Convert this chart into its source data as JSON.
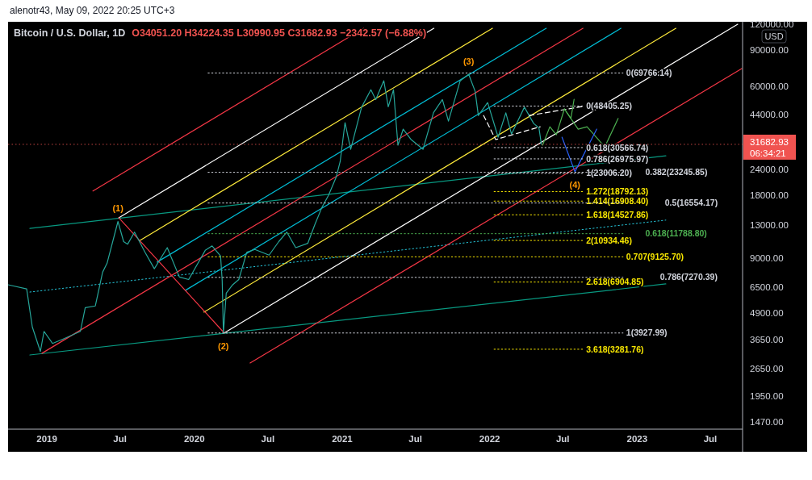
{
  "chart_data": {
    "type": "line",
    "title": "Bitcoin / U.S. Dollar, 1D",
    "subtitle": "O34051.20 H34224.35 L30990.95 C31682.93 −2342.57 (−6.88%)",
    "ylabel": "USD",
    "log": true,
    "xlim": [
      "2018-09-27",
      "2023-09-19"
    ],
    "ylim": [
      1355,
      123000
    ],
    "xticks": [
      {
        "value": "2019-01-01",
        "label": "2019"
      },
      {
        "value": "2019-07-01",
        "label": "Jul"
      },
      {
        "value": "2020-01-01",
        "label": "2020"
      },
      {
        "value": "2020-07-01",
        "label": "Jul"
      },
      {
        "value": "2021-01-01",
        "label": "2021"
      },
      {
        "value": "2021-07-01",
        "label": "Jul"
      },
      {
        "value": "2022-01-01",
        "label": "2022"
      },
      {
        "value": "2022-07-01",
        "label": "Jul"
      },
      {
        "value": "2023-01-01",
        "label": "2023"
      },
      {
        "value": "2023-07-01",
        "label": "Jul"
      }
    ],
    "yticks": [
      {
        "value": 1470,
        "label": "1470.00"
      },
      {
        "value": 1950,
        "label": "1950.00"
      },
      {
        "value": 2650,
        "label": "2650.00"
      },
      {
        "value": 3650,
        "label": "3650.00"
      },
      {
        "value": 4900,
        "label": "4900.00"
      },
      {
        "value": 6500,
        "label": "6500.00"
      },
      {
        "value": 9000,
        "label": "9000.00"
      },
      {
        "value": 13000,
        "label": "13000.00"
      },
      {
        "value": 18000,
        "label": "18000.00"
      },
      {
        "value": 24000,
        "label": "24000.00"
      },
      {
        "value": 44000,
        "label": "44000.00"
      },
      {
        "value": 60000,
        "label": "60000.00"
      },
      {
        "value": 90000,
        "label": "90000.00"
      },
      {
        "value": 120000,
        "label": "120000.00"
      }
    ],
    "ref_lines": [
      {
        "axis": "y",
        "value": 31682.93,
        "label": "31682.93",
        "color": "#f05350"
      }
    ],
    "annotations": [
      "alenotr43, May 09, 2022 20:25 UTC+3",
      "06:34:21",
      {
        "text": "(1)",
        "x": "2019-06-26",
        "y": 13500
      },
      {
        "text": "(2)",
        "x": "2020-03-13",
        "y": 3930
      },
      {
        "text": "(3)",
        "x": "2021-11-10",
        "y": 68900
      },
      {
        "text": "(4)",
        "x": "2022-07-31",
        "y": 23400
      }
    ],
    "series": [
      {
        "color": "#089981",
        "x": [
          "2018-11-20",
          "2023-03-13"
        ],
        "values": [
          3080,
          6760
        ]
      },
      {
        "color": "#089981",
        "x": [
          "2018-11-20",
          "2023-03-13"
        ],
        "values": [
          12500,
          27900
        ]
      },
      {
        "color": "#26c6da",
        "line_style": "dotted",
        "x": [
          "2018-11-20",
          "2023-03-13"
        ],
        "values": [
          6180,
          13700
        ]
      },
      {
        "color": "#f23645",
        "x": [
          "2019-04-25",
          "2021-02-23"
        ],
        "values": [
          18900,
          114500
        ]
      },
      {
        "color": "#ffffff",
        "x": [
          "2019-06-28",
          "2021-08-16"
        ],
        "values": [
          14060,
          114500
        ]
      },
      {
        "color": "#ffeb3b",
        "x": [
          "2019-08-18",
          "2022-01-08"
        ],
        "values": [
          10900,
          114500
        ]
      },
      {
        "color": "#00bcd4",
        "x": [
          "2019-10-01",
          "2022-05-21"
        ],
        "values": [
          8610,
          114500
        ]
      },
      {
        "color": "#f23645",
        "x": [
          "2018-12-20",
          "2022-08-20"
        ],
        "values": [
          3140,
          114500
        ]
      },
      {
        "color": "#00bcd4",
        "x": [
          "2019-12-10",
          "2022-11-22"
        ],
        "values": [
          6300,
          114500
        ]
      },
      {
        "color": "#ffeb3b",
        "x": [
          "2020-01-25",
          "2023-04-07"
        ],
        "values": [
          4950,
          114500
        ]
      },
      {
        "color": "#ffffff",
        "x": [
          "2020-03-15",
          "2023-09-07"
        ],
        "values": [
          3930,
          119700
        ]
      },
      {
        "color": "#f23645",
        "x": [
          "2020-05-18",
          "2023-09-17"
        ],
        "values": [
          2820,
          73300
        ]
      },
      {
        "color": "#f23645",
        "x": [
          "2019-06-28",
          "2020-03-15"
        ],
        "values": [
          14060,
          3930
        ]
      },
      {
        "color": "#26a69a",
        "x": [
          "2018-09-27",
          "2018-11-12",
          "2018-11-26",
          "2018-12-16",
          "2018-12-25",
          "2019-01-15",
          "2019-02-14",
          "2019-03-25",
          "2019-04-06",
          "2019-05-01",
          "2019-05-19",
          "2019-05-30",
          "2019-06-26",
          "2019-07-10",
          "2019-07-20",
          "2019-08-06",
          "2019-09-01",
          "2019-09-24",
          "2019-10-26",
          "2019-11-25",
          "2019-12-18",
          "2020-01-28",
          "2020-02-14",
          "2020-03-06",
          "2020-03-10",
          "2020-03-13",
          "2020-03-20",
          "2020-04-05",
          "2020-04-20",
          "2020-05-10",
          "2020-05-30",
          "2020-07-04",
          "2020-07-28",
          "2020-08-17",
          "2020-09-08",
          "2020-10-08",
          "2020-10-25",
          "2020-11-12",
          "2020-11-28",
          "2020-12-17",
          "2020-12-27",
          "2021-01-08",
          "2021-01-22",
          "2021-02-18",
          "2021-03-13",
          "2021-03-25",
          "2021-04-14",
          "2021-04-25",
          "2021-05-08",
          "2021-05-19",
          "2021-06-01",
          "2021-06-20",
          "2021-07-20",
          "2021-08-15",
          "2021-09-06",
          "2021-09-21",
          "2021-10-20",
          "2021-11-10",
          "2021-11-26",
          "2021-12-04",
          "2021-12-27",
          "2022-01-22",
          "2022-02-10",
          "2022-02-24",
          "2022-03-28",
          "2022-04-20",
          "2022-05-03",
          "2022-05-09"
        ],
        "values": [
          6700,
          6400,
          4200,
          3200,
          4000,
          3500,
          3700,
          4000,
          5200,
          5300,
          7700,
          8500,
          13500,
          10800,
          10500,
          12000,
          9600,
          8000,
          10100,
          7300,
          7100,
          9800,
          10300,
          9200,
          7000,
          3930,
          6100,
          6700,
          7100,
          9600,
          9900,
          9300,
          10800,
          12000,
          10100,
          10600,
          13000,
          15800,
          18000,
          22000,
          26200,
          40300,
          30000,
          47800,
          58000,
          52000,
          64100,
          48000,
          58000,
          31400,
          37500,
          33500,
          30000,
          45000,
          52000,
          41000,
          64000,
          68900,
          57000,
          43600,
          50300,
          34300,
          44900,
          35500,
          47800,
          39900,
          38000,
          31682.93
        ]
      },
      {
        "color": "#ffffff",
        "line_style": "dashed",
        "x": [
          "2021-12-17",
          "2022-01-16",
          "2022-05-06"
        ],
        "values": [
          43600,
          33400,
          38500
        ]
      },
      {
        "color": "#ffffff",
        "line_style": "dashed",
        "x": [
          "2022-04-09",
          "2022-08-20"
        ],
        "values": [
          43600,
          48200
        ]
      },
      {
        "color": "#4caf50",
        "x": [
          "2022-05-12",
          "2022-05-30",
          "2022-06-15",
          "2022-07-05",
          "2022-07-21",
          "2022-07-29"
        ],
        "values": [
          31400,
          38500,
          35200,
          46900,
          42200,
          52200
        ]
      },
      {
        "color": "#4caf50",
        "x": [
          "2022-07-05",
          "2022-08-08",
          "2022-08-30",
          "2022-10-13",
          "2022-11-15"
        ],
        "values": [
          46900,
          37500,
          38500,
          30800,
          42200
        ]
      },
      {
        "color": "#2962ff",
        "x": [
          "2022-06-29",
          "2022-07-31",
          "2022-09-23"
        ],
        "values": [
          34300,
          23400,
          37500
        ]
      },
      {
        "name": "0(48405.25)",
        "color": "#d1d4dc",
        "line_style": "dotted",
        "x": [
          "2022-01-12",
          "2022-08-20"
        ],
        "values": [
          48405.25,
          48405.25
        ]
      },
      {
        "name": "0.618(30566.74)",
        "color": "#d1d4dc",
        "line_style": "dotted",
        "x": [
          "2022-01-12",
          "2022-08-20"
        ],
        "values": [
          30566.74,
          30566.74
        ]
      },
      {
        "name": "0.786(26975.97)",
        "color": "#d1d4dc",
        "line_style": "dotted",
        "x": [
          "2022-01-12",
          "2022-08-20"
        ],
        "values": [
          26975.97,
          26975.97
        ]
      },
      {
        "name": "1(23006.20)",
        "color": "#d1d4dc",
        "line_style": "dotted",
        "x": [
          "2022-01-12",
          "2022-08-20"
        ],
        "values": [
          23006.2,
          23006.2
        ]
      },
      {
        "name": "1.272(18792.13)",
        "color": "#f7e600",
        "line_style": "dotted",
        "x": [
          "2022-01-12",
          "2022-08-20"
        ],
        "values": [
          18792.13,
          18792.13
        ]
      },
      {
        "name": "1.414(16908.40)",
        "color": "#f7e600",
        "line_style": "dotted",
        "x": [
          "2022-01-12",
          "2022-08-20"
        ],
        "values": [
          16908.4,
          16908.4
        ]
      },
      {
        "name": "1.618(14527.86)",
        "color": "#f7e600",
        "line_style": "dotted",
        "x": [
          "2022-01-12",
          "2022-08-20"
        ],
        "values": [
          14527.86,
          14527.86
        ]
      },
      {
        "name": "2(10934.46)",
        "color": "#f7e600",
        "line_style": "dotted",
        "x": [
          "2022-01-12",
          "2022-08-20"
        ],
        "values": [
          10934.46,
          10934.46
        ]
      },
      {
        "name": "2.618(6904.85)",
        "color": "#f7e600",
        "line_style": "dotted",
        "x": [
          "2022-01-12",
          "2022-08-20"
        ],
        "values": [
          6904.85,
          6904.85
        ]
      },
      {
        "name": "3.618(3281.76)",
        "color": "#f7e600",
        "line_style": "dotted",
        "x": [
          "2022-01-12",
          "2022-08-20"
        ],
        "values": [
          3281.76,
          3281.76
        ]
      },
      {
        "name": "0(69766.14)",
        "color": "#d1d4dc",
        "line_style": "dotted",
        "x": [
          "2020-02-04",
          "2022-11-27"
        ],
        "values": [
          69766.14,
          69766.14
        ]
      },
      {
        "name": "0.382(23245.85)",
        "color": "#d1d4dc",
        "line_style": "dotted",
        "x": [
          "2020-02-04",
          "2022-11-27"
        ],
        "values": [
          23245.85,
          23245.85
        ]
      },
      {
        "name": "0.5(16554.17)",
        "color": "#d1d4dc",
        "line_style": "dotted",
        "x": [
          "2020-02-04",
          "2022-11-27"
        ],
        "values": [
          16554.17,
          16554.17
        ]
      },
      {
        "name": "0.618(11788.80)",
        "color": "#4caf50",
        "line_style": "dotted",
        "x": [
          "2020-02-04",
          "2022-11-27"
        ],
        "values": [
          11788.8,
          11788.8
        ]
      },
      {
        "name": "0.707(9125.70)",
        "color": "#f7e600",
        "line_style": "dotted",
        "x": [
          "2020-02-04",
          "2022-11-27"
        ],
        "values": [
          9125.7,
          9125.7
        ]
      },
      {
        "name": "0.786(7270.39)",
        "color": "#d1d4dc",
        "line_style": "dotted",
        "x": [
          "2020-02-04",
          "2022-11-27"
        ],
        "values": [
          7270.39,
          7270.39
        ]
      },
      {
        "name": "1(3927.99)",
        "color": "#d1d4dc",
        "line_style": "dotted",
        "x": [
          "2020-02-04",
          "2022-11-27"
        ],
        "values": [
          3927.99,
          3927.99
        ]
      }
    ]
  }
}
